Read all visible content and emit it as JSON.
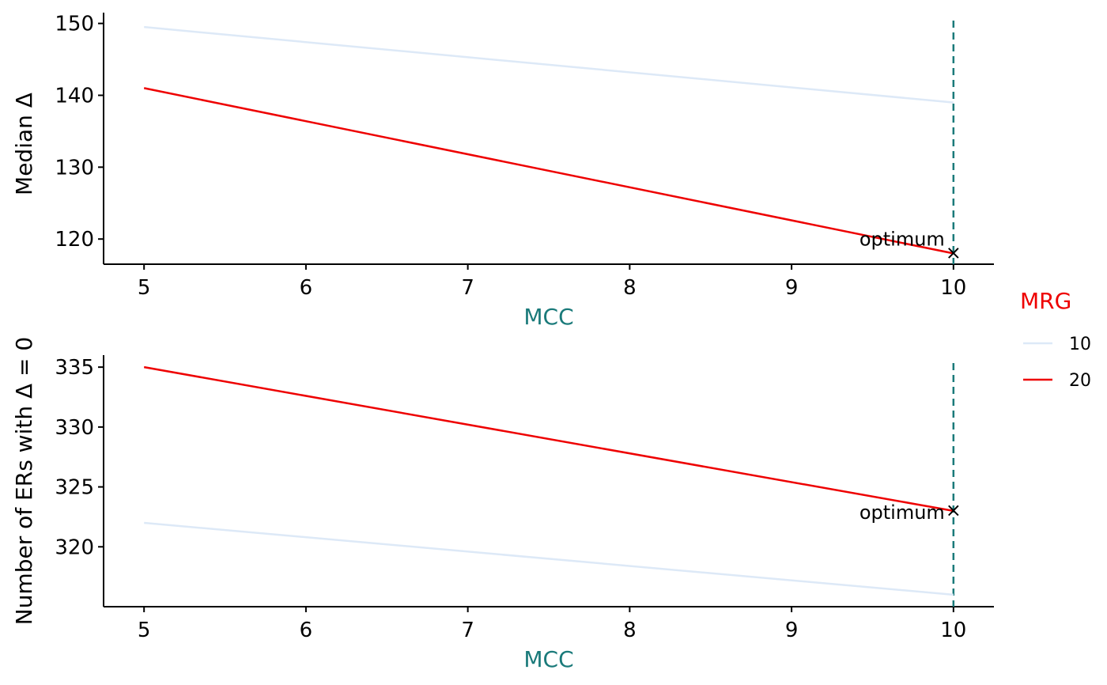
{
  "colors": {
    "series_10": "#dde9f7",
    "series_20": "#ee0000",
    "vline": "#1a7a7a",
    "xlabel": "#1a7a7a",
    "legend_title": "#ee0000"
  },
  "legend": {
    "title": "MRG",
    "placement": "right",
    "items": [
      {
        "label": "10",
        "color": "#dde9f7"
      },
      {
        "label": "20",
        "color": "#ee0000"
      }
    ]
  },
  "chart_data": [
    {
      "type": "line",
      "xlabel": "MCC",
      "ylabel": "Median Δ",
      "xlim": [
        4.75,
        10.25
      ],
      "ylim": [
        116.5,
        151.5
      ],
      "xticks": [
        5,
        6,
        7,
        8,
        9,
        10
      ],
      "yticks": [
        120,
        130,
        140,
        150
      ],
      "grid": false,
      "series": [
        {
          "name": "10",
          "x": [
            5,
            10
          ],
          "y": [
            149.5,
            139
          ]
        },
        {
          "name": "20",
          "x": [
            5,
            10
          ],
          "y": [
            141,
            118
          ]
        }
      ],
      "vline": 10,
      "annotation": {
        "text": "optimum",
        "x": 10,
        "y": 118,
        "marker": "×"
      }
    },
    {
      "type": "line",
      "xlabel": "MCC",
      "ylabel": "Number of ERs with  Δ = 0",
      "xlim": [
        4.75,
        10.25
      ],
      "ylim": [
        315,
        336
      ],
      "xticks": [
        5,
        6,
        7,
        8,
        9,
        10
      ],
      "yticks": [
        320,
        325,
        330,
        335
      ],
      "grid": false,
      "series": [
        {
          "name": "10",
          "x": [
            5,
            10
          ],
          "y": [
            322,
            316
          ]
        },
        {
          "name": "20",
          "x": [
            5,
            10
          ],
          "y": [
            335,
            323
          ]
        }
      ],
      "vline": 10,
      "annotation": {
        "text": "optimum",
        "x": 10,
        "y": 323,
        "marker": "×"
      }
    }
  ]
}
